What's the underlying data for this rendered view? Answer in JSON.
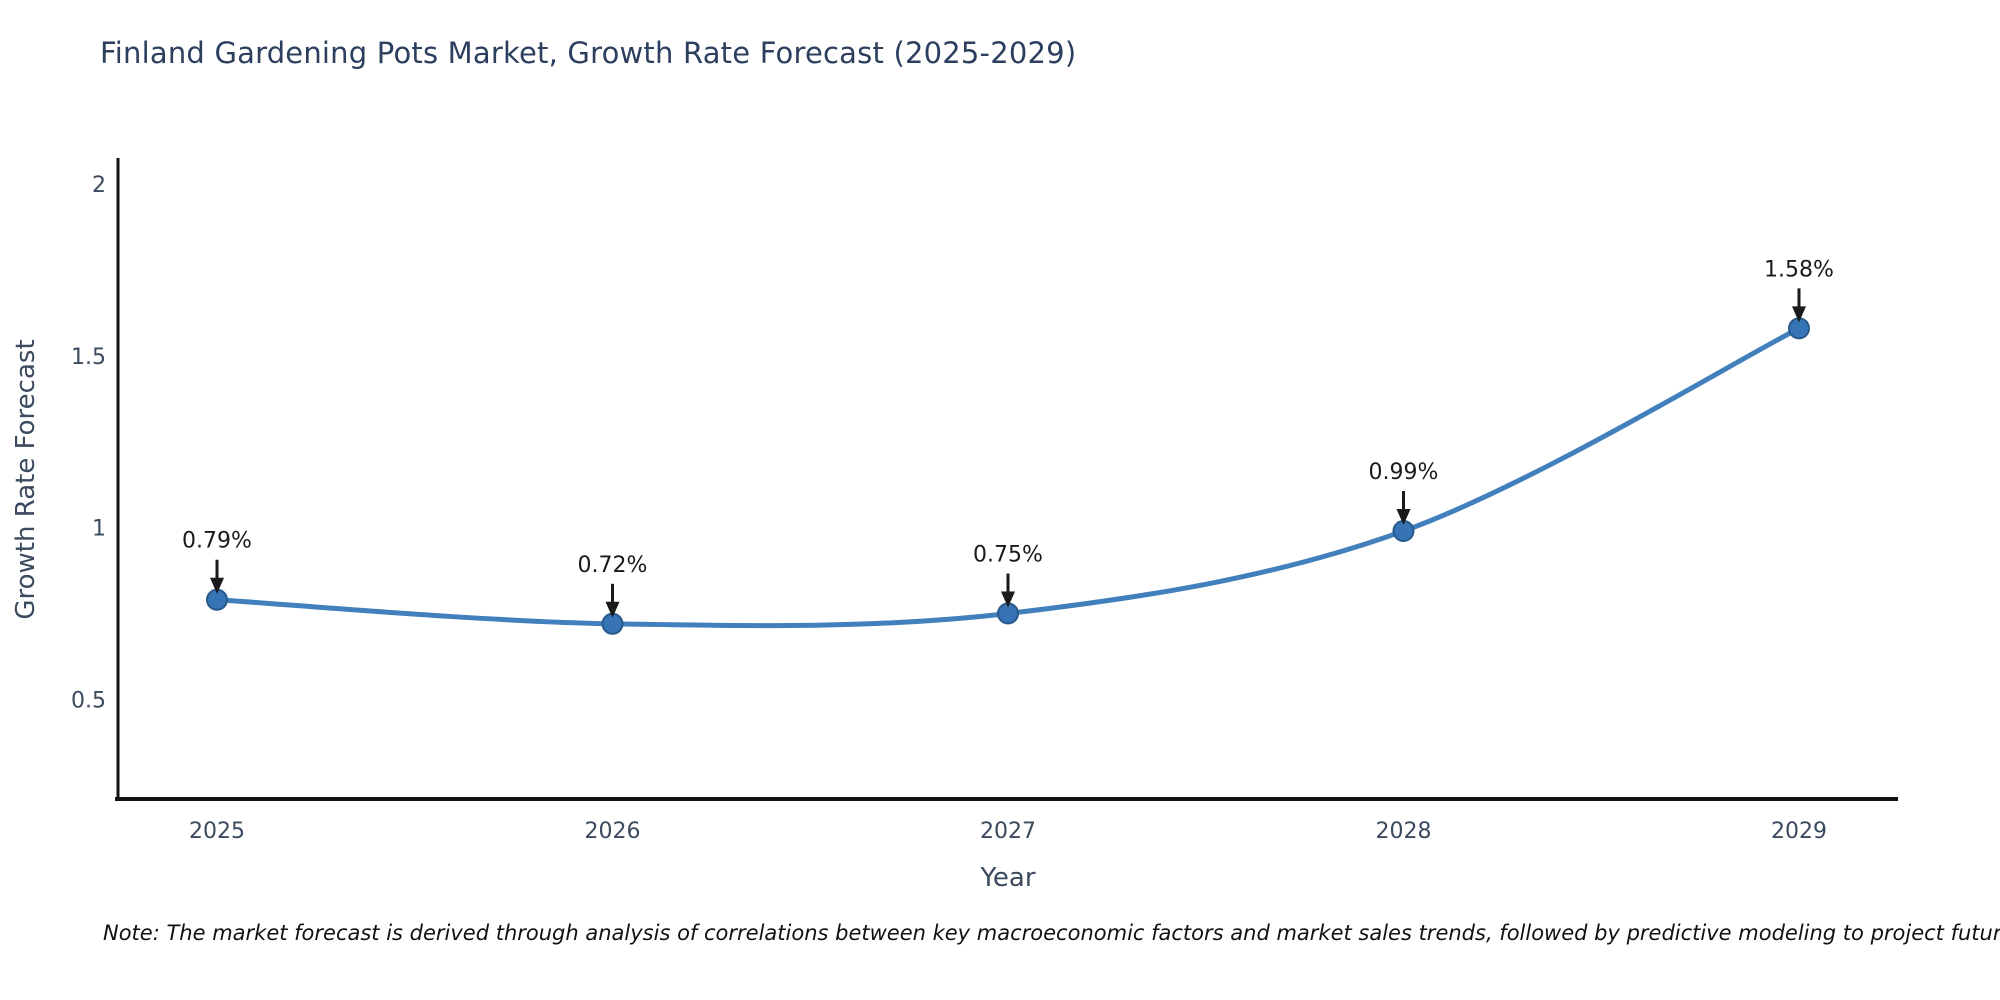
{
  "title": "Finland Gardening Pots Market, Growth Rate Forecast (2025-2029)",
  "note": "Note: The market forecast is derived through analysis of correlations between key macroeconomic factors and market sales trends, followed by predictive modeling to project future sales",
  "chart_data": {
    "type": "line",
    "title": "Finland Gardening Pots Market, Growth Rate Forecast (2025-2029)",
    "x": [
      2025,
      2026,
      2027,
      2028,
      2029
    ],
    "xticklabels": [
      "2025",
      "2026",
      "2027",
      "2028",
      "2029"
    ],
    "values": [
      0.79,
      0.72,
      0.75,
      0.99,
      1.58
    ],
    "point_labels": [
      "0.79%",
      "0.72%",
      "0.75%",
      "0.99%",
      "1.58%"
    ],
    "xlabel": "Year",
    "ylabel": "Growth Rate Forecast",
    "yticks": [
      0.5,
      1,
      1.5,
      2
    ],
    "yticklabels": [
      "0.5",
      "1",
      "1.5",
      "2"
    ],
    "ylim": [
      0.21,
      2.07
    ],
    "grid": false,
    "legend_position": "none",
    "line_shape": "spline",
    "annotations": "arrow-down-to-point",
    "colors": {
      "line": "#4180bc",
      "marker_fill": "#3674b5",
      "marker_edge": "#27598c",
      "axis_line": "#111111",
      "title_text": "#2d3f5e",
      "tick_text": "#3b4a5e",
      "annotation": "#1a1a1a",
      "background": "#ffffff"
    }
  }
}
